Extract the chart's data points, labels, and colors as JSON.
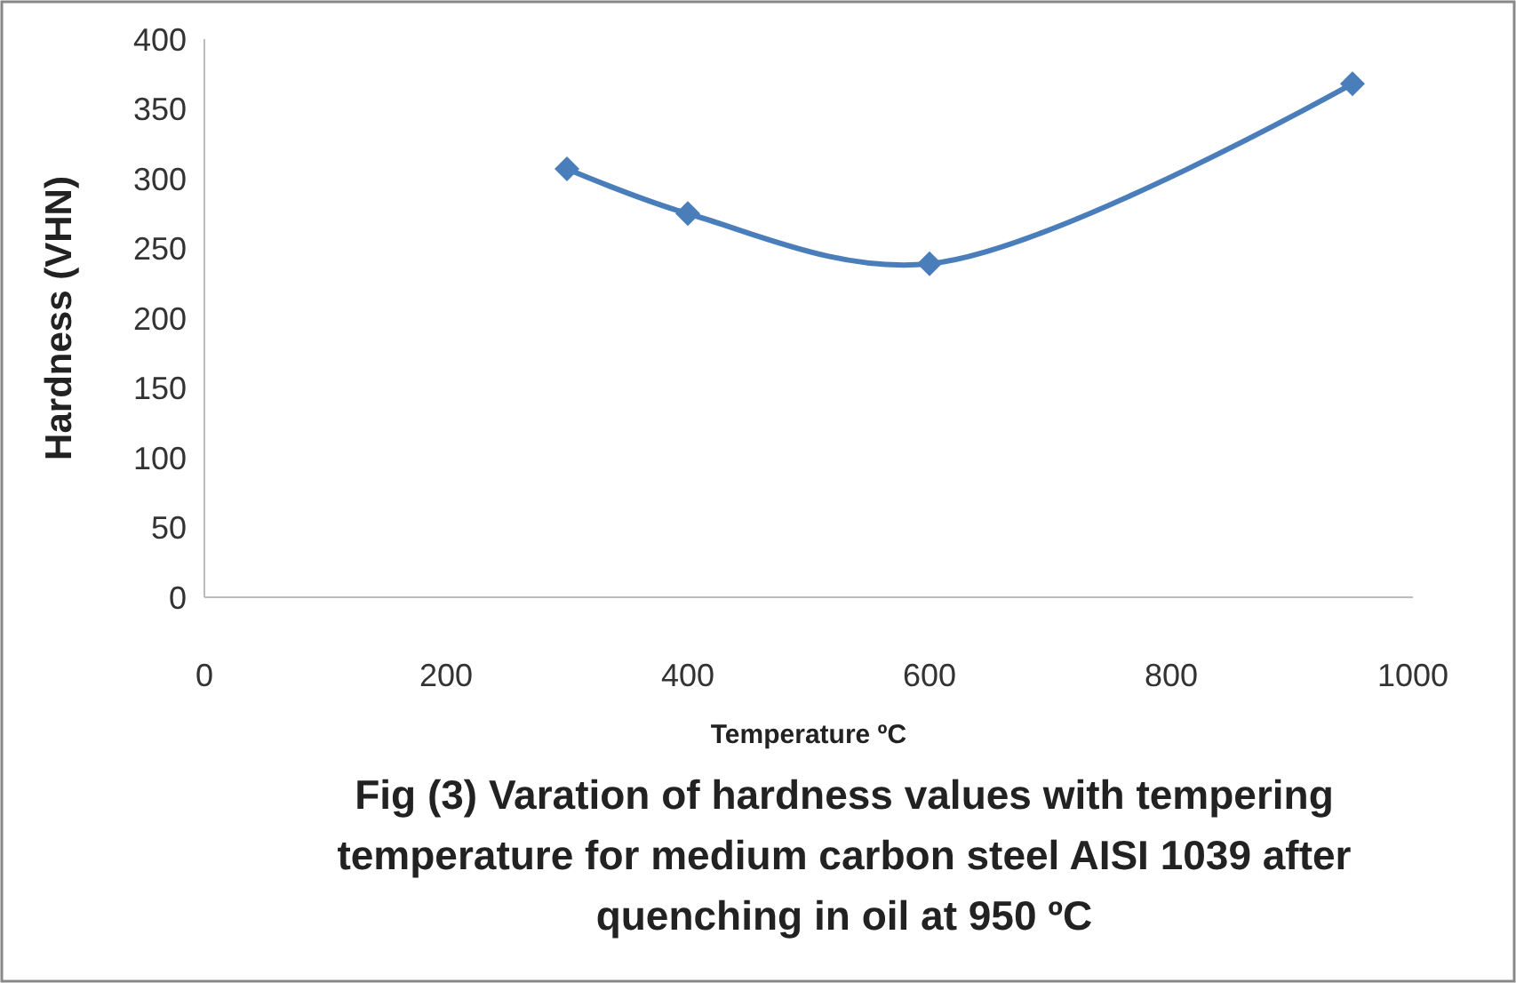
{
  "chart_data": {
    "type": "line",
    "title": "Fig (3) Varation of hardness values with tempering temperature for medium carbon steel AISI 1039 after quenching in oil at 950 ºC",
    "xlabel": "Temperature ºC",
    "ylabel": "Hardness (VHN)",
    "x": [
      300,
      400,
      600,
      950
    ],
    "series": [
      {
        "color": "#4a7ebb",
        "values": [
          307,
          275,
          239,
          368
        ]
      }
    ],
    "xlim": [
      0,
      1000
    ],
    "xticks": [
      0,
      200,
      400,
      600,
      800,
      1000
    ],
    "ylim": [
      0,
      400
    ],
    "yticks": [
      0,
      50,
      100,
      150,
      200,
      250,
      300,
      350,
      400
    ],
    "grid": false,
    "marker": "diamond",
    "line_style": "solid"
  }
}
